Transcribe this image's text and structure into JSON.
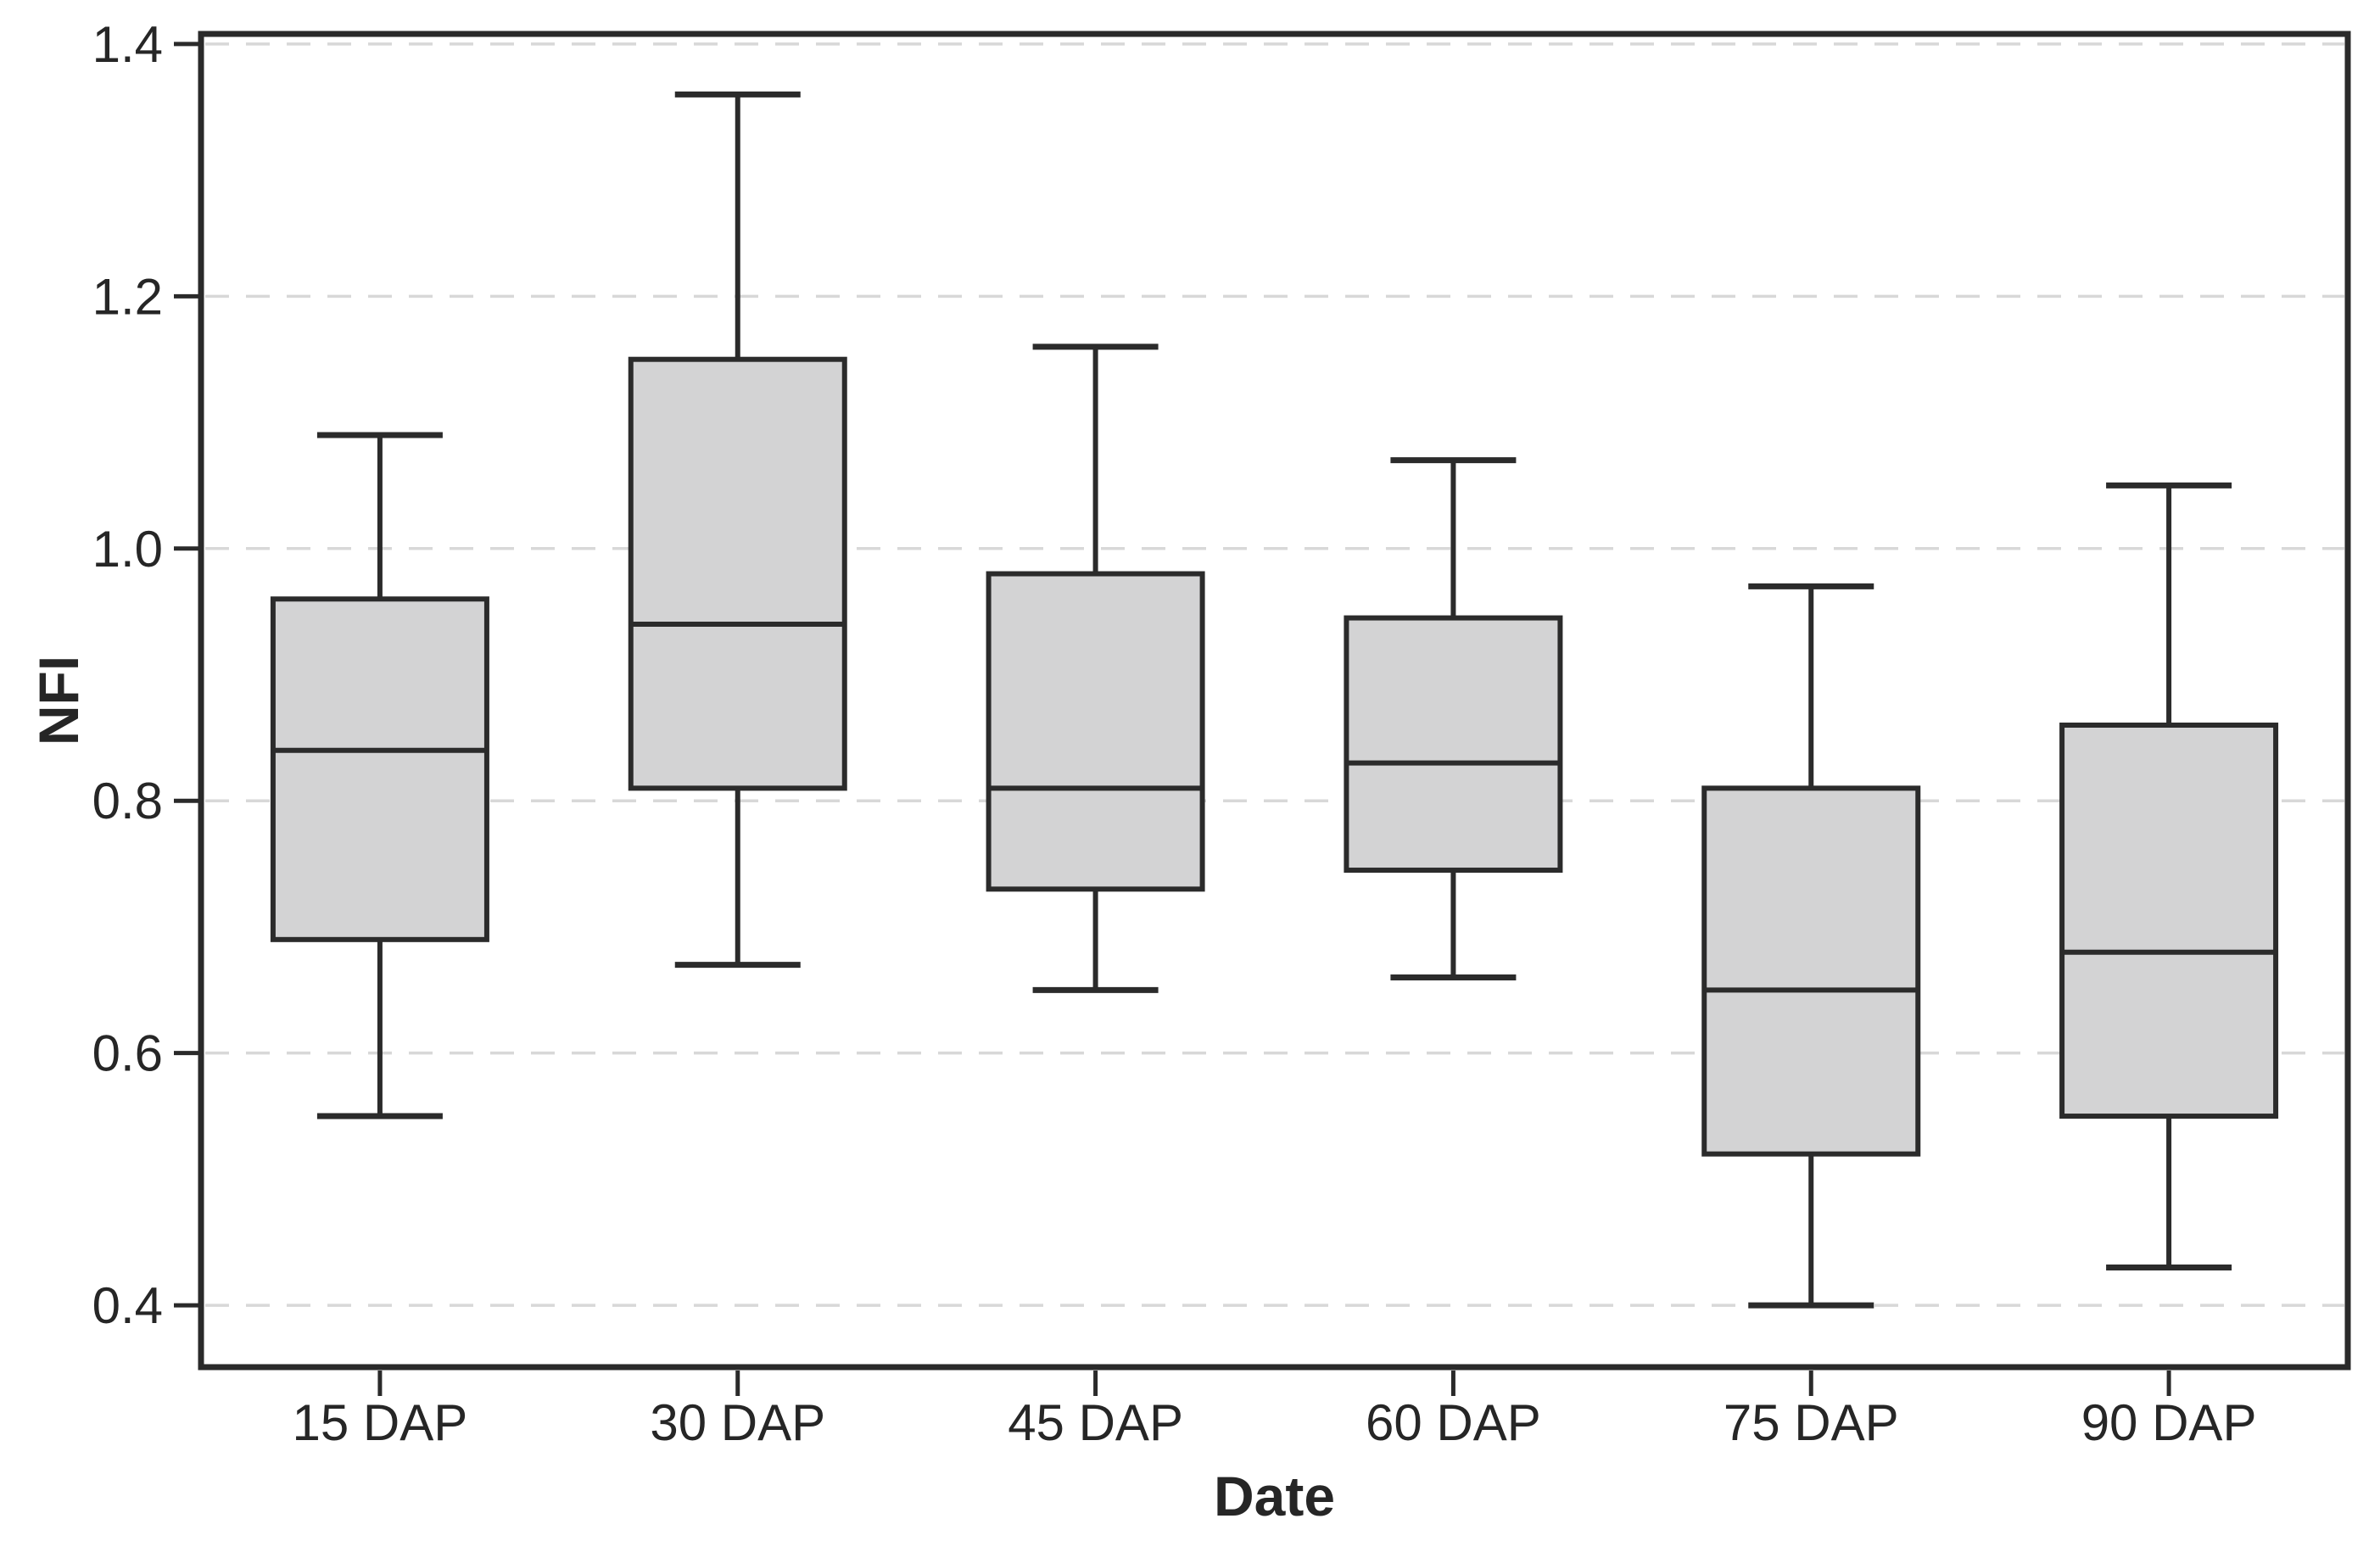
{
  "chart_data": {
    "type": "box",
    "title": "",
    "xlabel": "Date",
    "ylabel": "NFI",
    "categories": [
      "15 DAP",
      "30 DAP",
      "45 DAP",
      "60 DAP",
      "75 DAP",
      "90 DAP"
    ],
    "series": [
      {
        "category": "15 DAP",
        "whisker_low": 0.55,
        "q1": 0.69,
        "median": 0.84,
        "q3": 0.96,
        "whisker_high": 1.09
      },
      {
        "category": "30 DAP",
        "whisker_low": 0.67,
        "q1": 0.81,
        "median": 0.94,
        "q3": 1.15,
        "whisker_high": 1.36
      },
      {
        "category": "45 DAP",
        "whisker_low": 0.65,
        "q1": 0.73,
        "median": 0.81,
        "q3": 0.98,
        "whisker_high": 1.16
      },
      {
        "category": "60 DAP",
        "whisker_low": 0.66,
        "q1": 0.745,
        "median": 0.83,
        "q3": 0.945,
        "whisker_high": 1.07
      },
      {
        "category": "75 DAP",
        "whisker_low": 0.4,
        "q1": 0.52,
        "median": 0.65,
        "q3": 0.81,
        "whisker_high": 0.97
      },
      {
        "category": "90 DAP",
        "whisker_low": 0.43,
        "q1": 0.55,
        "median": 0.68,
        "q3": 0.86,
        "whisker_high": 1.05
      }
    ],
    "y_ticks": [
      "0.4",
      "0.6",
      "0.8",
      "1.0",
      "1.2",
      "1.4"
    ],
    "ylim": [
      0.351,
      1.408
    ],
    "grid": "horizontal-dashed",
    "legend": "none",
    "colors": {
      "box_fill": "#d3d3d4",
      "box_edge": "#2b2b2b",
      "median": "#2b2b2b",
      "whisker": "#2b2b2b",
      "frame": "#2a2a2a",
      "grid": "#d8d8d8",
      "text": "#262626",
      "background": "#ffffff"
    }
  }
}
